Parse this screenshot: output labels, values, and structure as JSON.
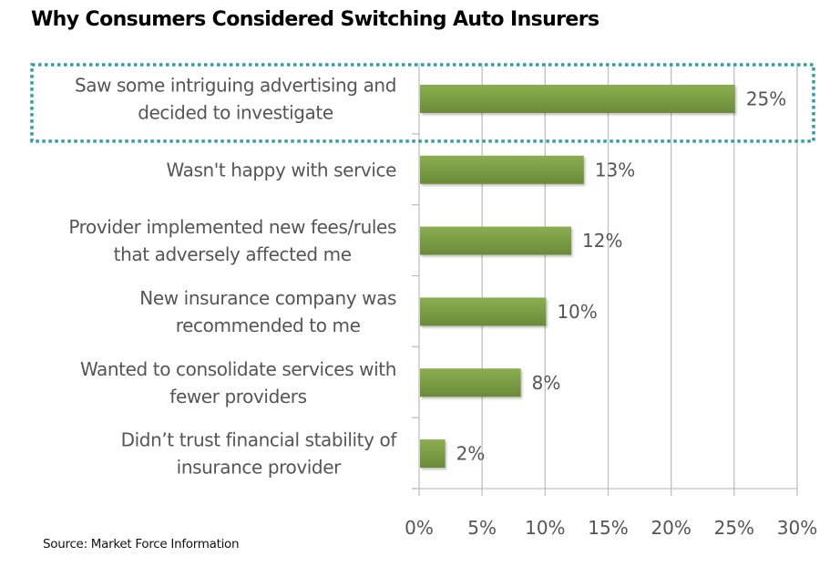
{
  "chart_data": {
    "type": "bar",
    "orientation": "horizontal",
    "title": "Why Consumers Considered Switching Auto Insurers",
    "source": "Source: Market Force Information",
    "categories": [
      [
        "Saw some intriguing advertising and",
        "decided to investigate"
      ],
      [
        "Wasn't happy with service"
      ],
      [
        "Provider implemented new fees/rules",
        "that adversely affected me"
      ],
      [
        "New insurance company was",
        "recommended to me"
      ],
      [
        "Wanted to consolidate services with",
        "fewer providers"
      ],
      [
        "Didn’t  trust financial stability of",
        "insurance provider"
      ]
    ],
    "values": [
      25,
      13,
      12,
      10,
      8,
      2
    ],
    "data_labels": [
      "25%",
      "13%",
      "12%",
      "10%",
      "8%",
      "2%"
    ],
    "xlim": [
      0,
      30
    ],
    "x_ticks": [
      0,
      5,
      10,
      15,
      20,
      25,
      30
    ],
    "x_tick_labels": [
      "0%",
      "5%",
      "10%",
      "15%",
      "20%",
      "25%",
      "30%"
    ],
    "xlabel": "",
    "ylabel": "",
    "grid": true,
    "legend": "none",
    "highlighted_category_index": 0,
    "colors": {
      "bar_top": "#8cae52",
      "bar_bottom": "#6a8a38",
      "grid": "#c0c0c0",
      "highlight_border": "#2e9ea8",
      "text": "#555555"
    }
  }
}
